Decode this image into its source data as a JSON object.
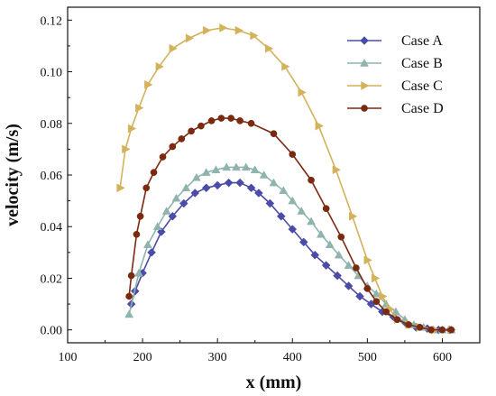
{
  "chart_data": {
    "type": "line",
    "title": "",
    "xlabel": "x (mm)",
    "ylabel": "velocity (m/s)",
    "xlim": [
      100,
      650
    ],
    "ylim": [
      -0.005,
      0.125
    ],
    "xticks": [
      100,
      200,
      300,
      400,
      500,
      600
    ],
    "xtick_labels": [
      "100",
      "200",
      "300",
      "400",
      "500",
      "600"
    ],
    "yticks": [
      0.0,
      0.02,
      0.04,
      0.06,
      0.08,
      0.1,
      0.12
    ],
    "ytick_labels": [
      "0.00",
      "0.02",
      "0.04",
      "0.06",
      "0.08",
      "0.10",
      "0.12"
    ],
    "grid": false,
    "legend_position": "top-right",
    "series": [
      {
        "name": "Case A",
        "color": "#4b4ba8",
        "marker": "diamond",
        "x": [
          185,
          190,
          200,
          212,
          225,
          240,
          255,
          270,
          285,
          300,
          315,
          330,
          345,
          355,
          370,
          385,
          400,
          415,
          430,
          445,
          460,
          475,
          490,
          505,
          520,
          535,
          550,
          565,
          580,
          595,
          610
        ],
        "y": [
          0.01,
          0.015,
          0.022,
          0.03,
          0.038,
          0.044,
          0.049,
          0.053,
          0.055,
          0.056,
          0.057,
          0.057,
          0.055,
          0.053,
          0.049,
          0.044,
          0.039,
          0.034,
          0.029,
          0.025,
          0.021,
          0.017,
          0.013,
          0.01,
          0.007,
          0.005,
          0.003,
          0.001,
          0.0005,
          0.0,
          0.0
        ]
      },
      {
        "name": "Case B",
        "color": "#8fb3ad",
        "marker": "triangle-up",
        "x": [
          182,
          195,
          207,
          220,
          232,
          245,
          258,
          272,
          285,
          298,
          312,
          325,
          338,
          350,
          362,
          375,
          388,
          400,
          412,
          425,
          438,
          450,
          462,
          475,
          488,
          500,
          512,
          525,
          538,
          550,
          562,
          575,
          588,
          600,
          612
        ],
        "y": [
          0.006,
          0.022,
          0.033,
          0.04,
          0.046,
          0.051,
          0.055,
          0.059,
          0.061,
          0.062,
          0.063,
          0.063,
          0.063,
          0.062,
          0.06,
          0.057,
          0.054,
          0.05,
          0.046,
          0.042,
          0.037,
          0.033,
          0.029,
          0.025,
          0.021,
          0.017,
          0.014,
          0.01,
          0.007,
          0.004,
          0.002,
          0.001,
          0.0,
          0.0,
          0.0
        ]
      },
      {
        "name": "Case C",
        "color": "#d4b25c",
        "marker": "triangle-right",
        "x": [
          170,
          177,
          185,
          195,
          207,
          222,
          240,
          262,
          285,
          307,
          328,
          348,
          368,
          390,
          412,
          435,
          458,
          480,
          500,
          510,
          520,
          530,
          540,
          555,
          570,
          590,
          612
        ],
        "y": [
          0.055,
          0.07,
          0.078,
          0.086,
          0.095,
          0.102,
          0.109,
          0.113,
          0.116,
          0.117,
          0.116,
          0.114,
          0.109,
          0.102,
          0.092,
          0.079,
          0.062,
          0.044,
          0.027,
          0.02,
          0.013,
          0.008,
          0.004,
          0.002,
          0.001,
          0.0,
          0.0
        ]
      },
      {
        "name": "Case D",
        "color": "#7a2a10",
        "marker": "circle",
        "x": [
          182,
          185,
          192,
          197,
          205,
          215,
          227,
          240,
          252,
          265,
          278,
          292,
          305,
          318,
          330,
          345,
          375,
          400,
          425,
          445,
          465,
          485,
          500,
          512,
          525,
          540,
          555,
          570,
          585,
          600,
          612
        ],
        "y": [
          0.013,
          0.021,
          0.037,
          0.044,
          0.055,
          0.061,
          0.067,
          0.071,
          0.074,
          0.077,
          0.079,
          0.081,
          0.082,
          0.082,
          0.081,
          0.08,
          0.076,
          0.068,
          0.058,
          0.047,
          0.036,
          0.024,
          0.016,
          0.011,
          0.007,
          0.004,
          0.002,
          0.001,
          0.0,
          0.0,
          0.0
        ]
      }
    ]
  }
}
